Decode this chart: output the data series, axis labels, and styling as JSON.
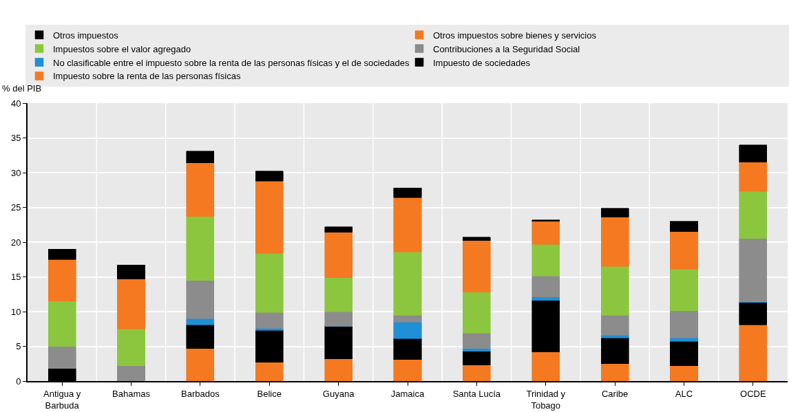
{
  "chart_data": {
    "type": "bar",
    "stacked": true,
    "ylabel": "% del PIB",
    "categories": [
      "Antigua y\nBarbuda",
      "Bahamas",
      "Barbados",
      "Belice",
      "Guyana",
      "Jamaica",
      "Santa Lucía",
      "Trinidad y\nTobago",
      "Caribe",
      "ALC",
      "OCDE"
    ],
    "series": [
      {
        "name": "Impuesto sobre la renta de las personas físicas",
        "color": "#f47920",
        "values": [
          0,
          0,
          4.7,
          2.7,
          3.2,
          3.1,
          2.3,
          4.2,
          2.5,
          2.2,
          8.1
        ]
      },
      {
        "name": "Impuesto de sociedades",
        "color": "#000000",
        "values": [
          1.8,
          0,
          3.4,
          4.6,
          4.7,
          3.0,
          2.0,
          7.4,
          3.7,
          3.5,
          3.2
        ]
      },
      {
        "name": "No clasificable entre el impuesto sobre la renta de las personas físicas y el de sociedades",
        "color": "#1f8fd6",
        "values": [
          0,
          0,
          0.9,
          0.3,
          0,
          2.4,
          0.4,
          0.5,
          0.4,
          0.5,
          0.1
        ]
      },
      {
        "name": "Contribuciones a la Seguridad Social",
        "color": "#8c8c8c",
        "values": [
          3.2,
          2.2,
          5.5,
          2.3,
          2.1,
          1.0,
          2.2,
          3.0,
          2.9,
          3.9,
          9.1
        ]
      },
      {
        "name": "Impuestos sobre el valor agregado",
        "color": "#8cc63f",
        "values": [
          6.5,
          5.3,
          9.2,
          8.5,
          4.9,
          9.1,
          5.9,
          4.6,
          7.0,
          6.0,
          6.8
        ]
      },
      {
        "name": "Otros impuestos sobre bienes y servicios",
        "color": "#f47920",
        "values": [
          6.0,
          7.2,
          7.7,
          10.4,
          6.5,
          7.8,
          7.4,
          3.3,
          7.1,
          5.4,
          4.2
        ]
      },
      {
        "name": "Otros impuestos",
        "color": "#000000",
        "values": [
          1.5,
          2.0,
          1.7,
          1.4,
          0.8,
          1.4,
          0.5,
          0.2,
          1.3,
          1.5,
          2.5
        ]
      }
    ],
    "ylim": [
      0,
      40
    ],
    "yticks": [
      0,
      5,
      10,
      15,
      20,
      25,
      30,
      35,
      40
    ],
    "grid": true,
    "legend": "top"
  }
}
